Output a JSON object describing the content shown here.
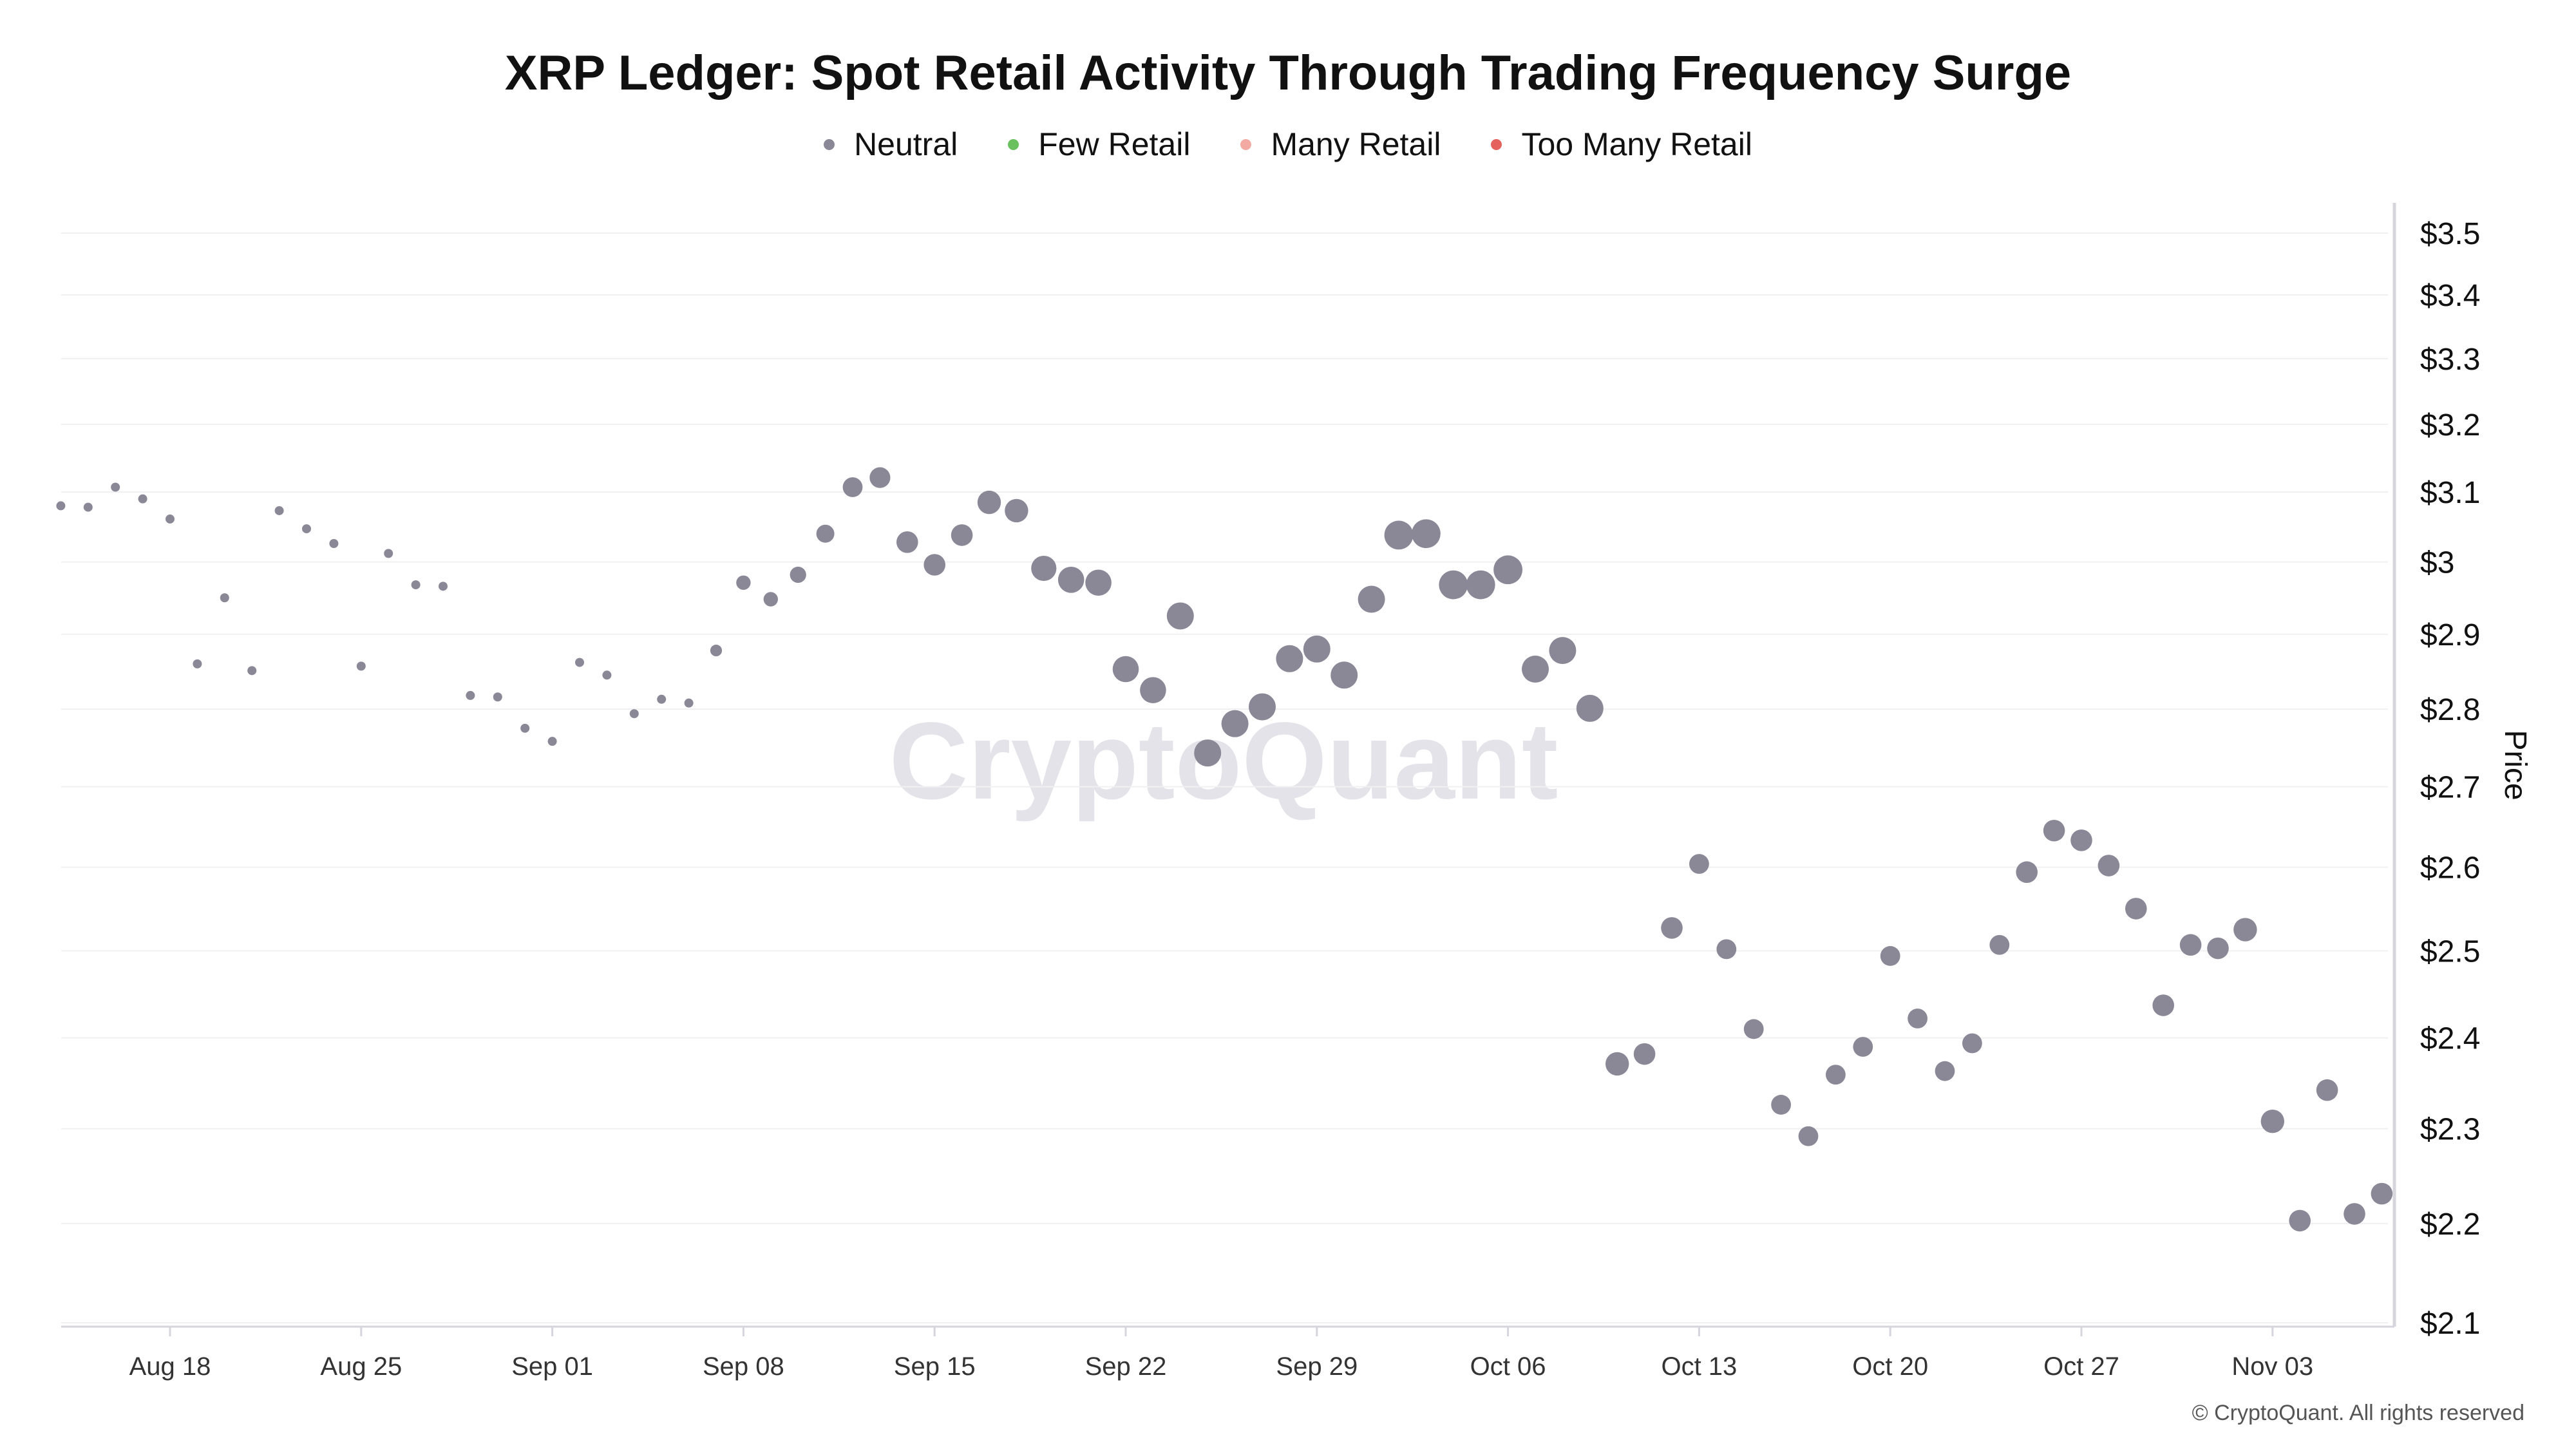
{
  "chart_data": {
    "type": "scatter",
    "title": "XRP Ledger: Spot Retail Activity Through Trading Frequency Surge",
    "ylabel": "Price",
    "xlabel": "",
    "y_scale": "log",
    "ylim": [
      2.1,
      3.5
    ],
    "y_ticks": [
      "$3.5",
      "$3.4",
      "$3.3",
      "$3.2",
      "$3.1",
      "$3",
      "$2.9",
      "$2.8",
      "$2.7",
      "$2.6",
      "$2.5",
      "$2.4",
      "$2.3",
      "$2.2",
      "$2.1"
    ],
    "y_tick_values": [
      3.5,
      3.4,
      3.3,
      3.2,
      3.1,
      3.0,
      2.9,
      2.8,
      2.7,
      2.6,
      2.5,
      2.4,
      2.3,
      2.2,
      2.1
    ],
    "x_ticks": [
      "Aug 18",
      "Aug 25",
      "Sep 01",
      "Sep 08",
      "Sep 15",
      "Sep 22",
      "Sep 29",
      "Oct 06",
      "Oct 13",
      "Oct 20",
      "Oct 27",
      "Nov 03"
    ],
    "x_start_date": "Aug 14",
    "x_end_date": "Nov 07",
    "grid": true,
    "legend_position": "top",
    "legend": [
      {
        "name": "Neutral",
        "color": "#8a8797"
      },
      {
        "name": "Few Retail",
        "color": "#6abf5e"
      },
      {
        "name": "Many Retail",
        "color": "#f2aaa2"
      },
      {
        "name": "Too Many Retail",
        "color": "#e5615d"
      }
    ],
    "series": [
      {
        "name": "Neutral",
        "color": "#8a8797",
        "x": [
          "Aug 14",
          "Aug 15",
          "Aug 16",
          "Aug 17",
          "Aug 18",
          "Aug 19",
          "Aug 20",
          "Aug 21",
          "Aug 22",
          "Aug 23",
          "Aug 24",
          "Aug 25",
          "Aug 26",
          "Aug 27",
          "Aug 28",
          "Aug 29",
          "Aug 30",
          "Aug 31",
          "Sep 01",
          "Sep 02",
          "Sep 03",
          "Sep 04",
          "Sep 05",
          "Sep 06",
          "Sep 07",
          "Sep 08",
          "Sep 09",
          "Sep 10",
          "Sep 11",
          "Sep 12",
          "Sep 13",
          "Sep 14",
          "Sep 15",
          "Sep 16",
          "Sep 17",
          "Sep 18",
          "Sep 19",
          "Sep 20",
          "Sep 21",
          "Sep 22",
          "Sep 23",
          "Sep 24",
          "Sep 25",
          "Sep 26",
          "Sep 27",
          "Sep 28",
          "Sep 29",
          "Sep 30",
          "Oct 01",
          "Oct 02",
          "Oct 03",
          "Oct 04",
          "Oct 05",
          "Oct 06",
          "Oct 07",
          "Oct 08",
          "Oct 09",
          "Oct 10",
          "Oct 11",
          "Oct 12",
          "Oct 13",
          "Oct 14",
          "Oct 15",
          "Oct 16",
          "Oct 17",
          "Oct 18",
          "Oct 19",
          "Oct 20",
          "Oct 21",
          "Oct 22",
          "Oct 23",
          "Oct 24",
          "Oct 25",
          "Oct 26",
          "Oct 27",
          "Oct 28",
          "Oct 29",
          "Oct 30",
          "Oct 31",
          "Nov 01",
          "Nov 02",
          "Nov 03",
          "Nov 04",
          "Nov 05",
          "Nov 06",
          "Nov 07"
        ],
        "y": [
          3.08,
          3.078,
          3.107,
          3.09,
          3.061,
          2.86,
          2.95,
          2.851,
          3.073,
          3.047,
          3.026,
          2.857,
          3.012,
          2.968,
          2.966,
          2.818,
          2.816,
          2.775,
          2.758,
          2.862,
          2.845,
          2.794,
          2.813,
          2.808,
          2.878,
          2.971,
          2.948,
          2.982,
          3.04,
          3.107,
          3.121,
          3.028,
          2.996,
          3.038,
          3.085,
          3.073,
          2.991,
          2.975,
          2.971,
          2.853,
          2.825,
          2.925,
          2.743,
          2.781,
          2.803,
          2.867,
          2.88,
          2.845,
          2.948,
          3.038,
          3.04,
          2.968,
          2.968,
          2.989,
          2.853,
          2.878,
          2.801,
          2.371,
          2.382,
          2.527,
          2.604,
          2.502,
          2.41,
          2.326,
          2.292,
          2.359,
          2.39,
          2.494,
          2.422,
          2.363,
          2.394,
          2.507,
          2.594,
          2.645,
          2.633,
          2.602,
          2.55,
          2.437,
          2.507,
          2.503,
          2.525,
          2.308,
          2.203,
          2.342,
          2.21,
          2.231
        ],
        "size": [
          1,
          1,
          1,
          1,
          1,
          1,
          1,
          1,
          1,
          1,
          1,
          1,
          1,
          1,
          1,
          1,
          1,
          1,
          1,
          1,
          1,
          1,
          1,
          1,
          1.3,
          1.6,
          1.6,
          1.8,
          2,
          2.2,
          2.3,
          2.4,
          2.4,
          2.4,
          2.6,
          2.6,
          2.8,
          2.9,
          2.9,
          2.9,
          2.9,
          3,
          3,
          3,
          3,
          3,
          3,
          3,
          3,
          3.2,
          3.2,
          3.2,
          3.2,
          3.2,
          3,
          3,
          3,
          2.6,
          2.4,
          2.4,
          2.2,
          2.2,
          2.2,
          2.2,
          2.2,
          2.2,
          2.2,
          2.2,
          2.2,
          2.2,
          2.2,
          2.2,
          2.4,
          2.4,
          2.4,
          2.4,
          2.4,
          2.4,
          2.4,
          2.4,
          2.6,
          2.6,
          2.4,
          2.4,
          2.4,
          2.4
        ]
      }
    ]
  },
  "watermark": "CryptoQuant",
  "copyright": "© CryptoQuant. All rights reserved"
}
